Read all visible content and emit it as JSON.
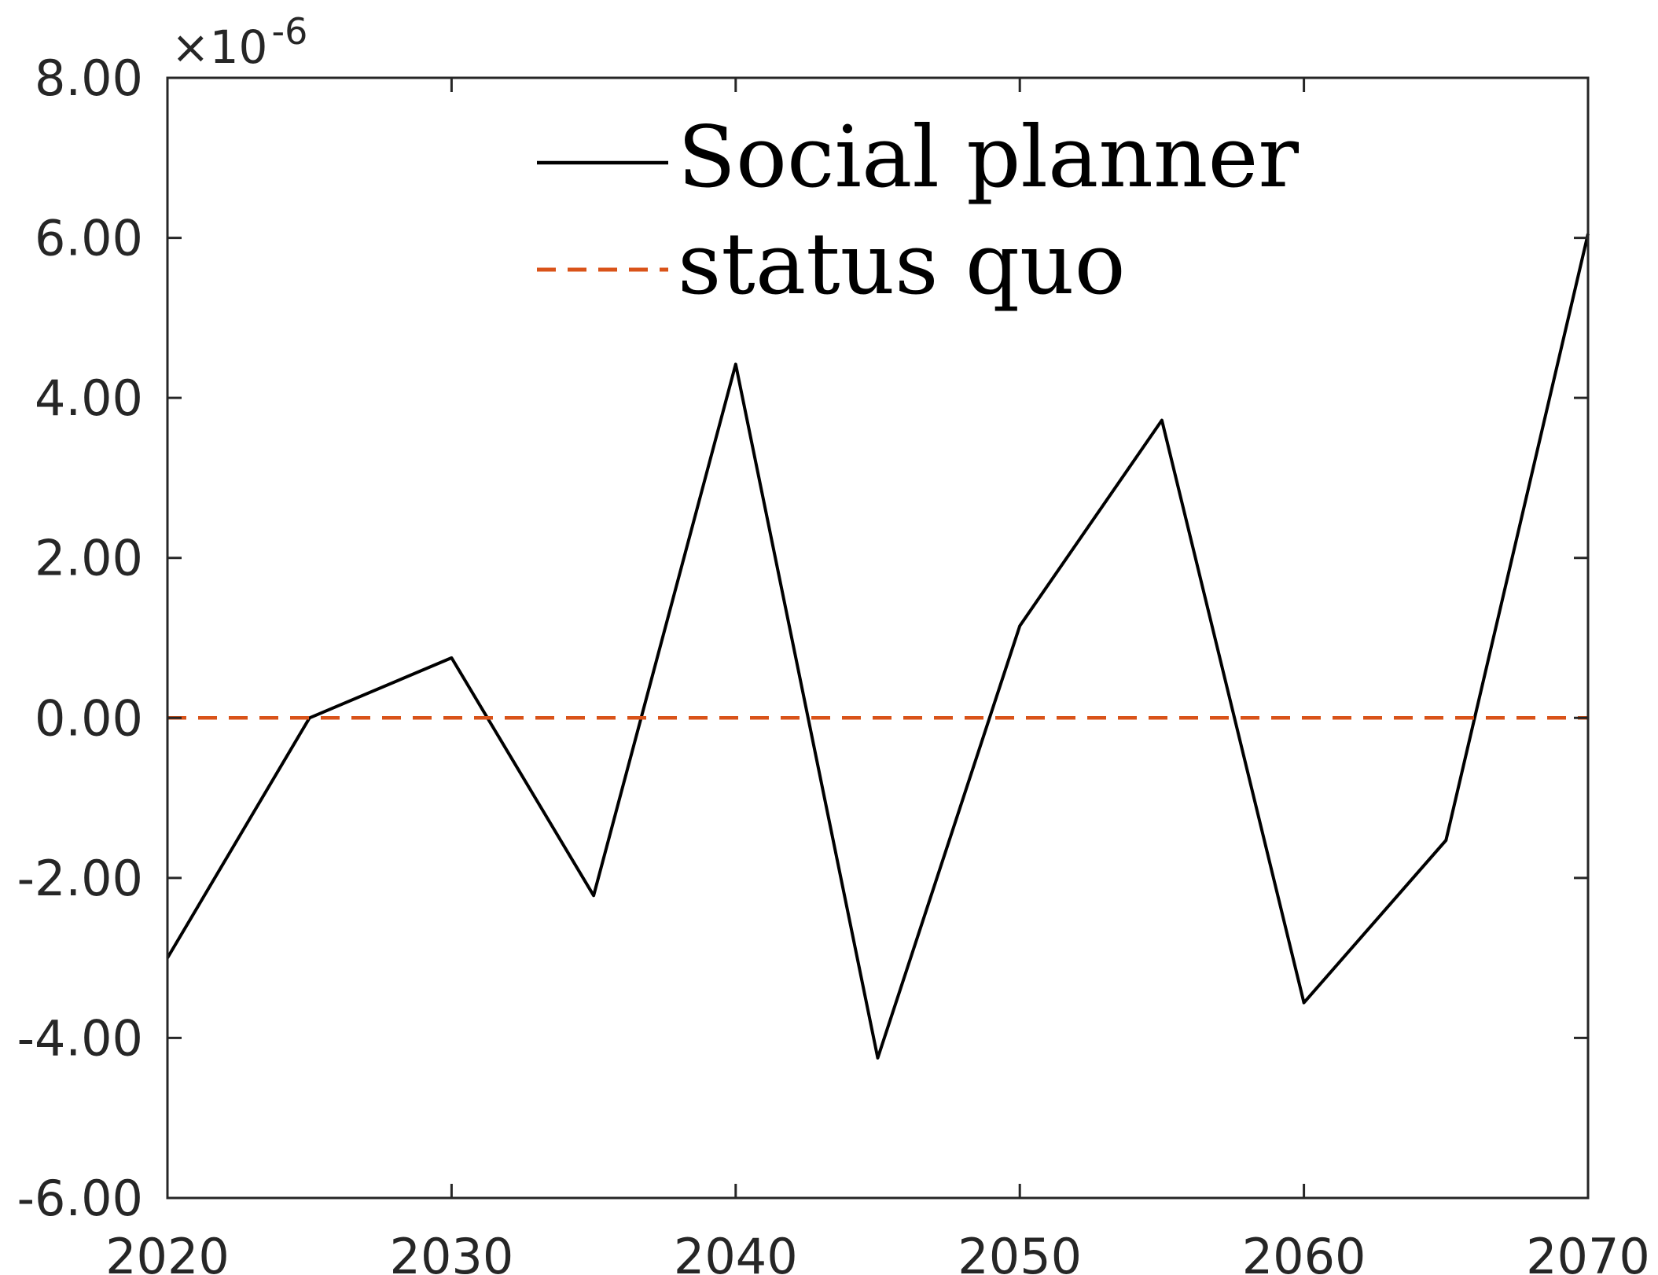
{
  "chart_data": {
    "type": "line",
    "x": [
      2020,
      2025,
      2030,
      2035,
      2040,
      2045,
      2050,
      2055,
      2060,
      2065,
      2070
    ],
    "series": [
      {
        "name": "Social planner",
        "values": [
          -3.0,
          0.0,
          0.75,
          -2.22,
          4.42,
          -4.25,
          1.15,
          3.72,
          -3.56,
          -1.53,
          6.05
        ],
        "color": "#000000",
        "style": "solid"
      },
      {
        "name": "status quo",
        "values": [
          0,
          0,
          0,
          0,
          0,
          0,
          0,
          0,
          0,
          0,
          0
        ],
        "color": "#D95319",
        "style": "dashed"
      }
    ],
    "xlim": [
      2020,
      2070
    ],
    "ylim": [
      -6,
      8
    ],
    "xticks": [
      2020,
      2030,
      2040,
      2050,
      2060,
      2070
    ],
    "xtick_labels": [
      "2020",
      "2030",
      "2040",
      "2050",
      "2060",
      "2070"
    ],
    "yticks": [
      -6,
      -4,
      -2,
      0,
      2,
      4,
      6,
      8
    ],
    "ytick_labels": [
      "-6.00",
      "-4.00",
      "-2.00",
      "0.00",
      "2.00",
      "4.00",
      "6.00",
      "8.00"
    ],
    "y_exponent": {
      "base": "×10",
      "power": "-6"
    },
    "legend": "top",
    "grid": false
  }
}
